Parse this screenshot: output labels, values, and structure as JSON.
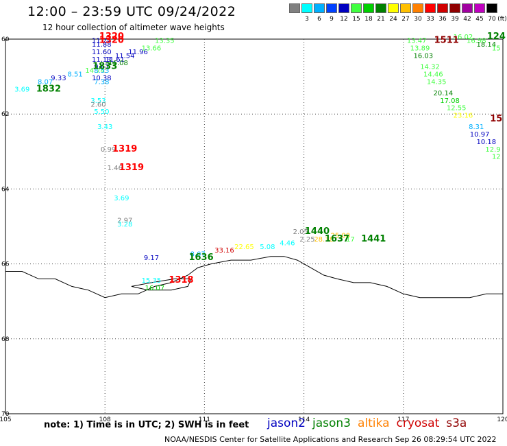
{
  "title": "12:00 – 23:59 UTC 09/24/2022",
  "subtitle": "12 hour collection of altimeter wave heights",
  "legend": {
    "unit": "(ft)",
    "bins": [
      {
        "label": "",
        "color": "#808080"
      },
      {
        "label": "3",
        "color": "#00ffff"
      },
      {
        "label": "6",
        "color": "#00b0ff"
      },
      {
        "label": "9",
        "color": "#0040ff"
      },
      {
        "label": "12",
        "color": "#0000c0"
      },
      {
        "label": "15",
        "color": "#40ff40"
      },
      {
        "label": "18",
        "color": "#00d000"
      },
      {
        "label": "21",
        "color": "#008000"
      },
      {
        "label": "24",
        "color": "#ffff00"
      },
      {
        "label": "27",
        "color": "#ffc000"
      },
      {
        "label": "30",
        "color": "#ff8000"
      },
      {
        "label": "33",
        "color": "#ff0000"
      },
      {
        "label": "36",
        "color": "#d00000"
      },
      {
        "label": "39",
        "color": "#900000"
      },
      {
        "label": "42",
        "color": "#a000a0"
      },
      {
        "label": "45",
        "color": "#c000c0"
      },
      {
        "label": "70",
        "color": "#000000"
      }
    ]
  },
  "axes": {
    "lon_min": 105,
    "lon_max": 120,
    "lat_min": 60,
    "lat_max": 70,
    "lon_ticks": [
      "105",
      "108",
      "111",
      "114",
      "117",
      "120"
    ],
    "lat_ticks": [
      "60",
      "62",
      "64",
      "66",
      "68",
      "70"
    ]
  },
  "observations": [
    {
      "text": "11.24",
      "lon": 107.9,
      "lat": 60.1,
      "color": "#0000c0"
    },
    {
      "text": "11.88",
      "lon": 107.9,
      "lat": 60.2,
      "color": "#0000c0"
    },
    {
      "text": "11.60",
      "lon": 107.9,
      "lat": 60.4,
      "color": "#0000c0"
    },
    {
      "text": "11.13",
      "lon": 107.9,
      "lat": 60.6,
      "color": "#0000c0"
    },
    {
      "text": "11.54",
      "lon": 108.6,
      "lat": 60.5,
      "color": "#0000c0"
    },
    {
      "text": "11.96",
      "lon": 109.0,
      "lat": 60.4,
      "color": "#0000c0"
    },
    {
      "text": "11.61",
      "lon": 108.3,
      "lat": 60.6,
      "color": "#0000c0"
    },
    {
      "text": "13.66",
      "lon": 109.4,
      "lat": 60.3,
      "color": "#40ff40"
    },
    {
      "text": "13.35",
      "lon": 109.8,
      "lat": 60.1,
      "color": "#40ff40"
    },
    {
      "text": "16.08",
      "lon": 108.4,
      "lat": 60.7,
      "color": "#008000"
    },
    {
      "text": "14.74",
      "lon": 107.7,
      "lat": 60.9,
      "color": "#40ff40"
    },
    {
      "text": "9.61",
      "lon": 107.9,
      "lat": 60.8,
      "color": "#0000c0"
    },
    {
      "text": "8.51",
      "lon": 107.1,
      "lat": 61.0,
      "color": "#00b0ff"
    },
    {
      "text": "8.53",
      "lon": 107.9,
      "lat": 60.9,
      "color": "#00b0ff"
    },
    {
      "text": "9.33",
      "lon": 106.6,
      "lat": 61.1,
      "color": "#0000c0"
    },
    {
      "text": "8.07",
      "lon": 106.2,
      "lat": 61.2,
      "color": "#00b0ff"
    },
    {
      "text": "3.69",
      "lon": 105.5,
      "lat": 61.4,
      "color": "#00ffff"
    },
    {
      "text": "10.38",
      "lon": 107.9,
      "lat": 61.1,
      "color": "#0000c0"
    },
    {
      "text": "7.38",
      "lon": 107.9,
      "lat": 61.2,
      "color": "#00b0ff"
    },
    {
      "text": "3.53",
      "lon": 107.8,
      "lat": 61.7,
      "color": "#00ffff"
    },
    {
      "text": "2.60",
      "lon": 107.8,
      "lat": 61.8,
      "color": "#808080"
    },
    {
      "text": "5.50",
      "lon": 107.9,
      "lat": 62.0,
      "color": "#00ffff"
    },
    {
      "text": "3.43",
      "lon": 108.0,
      "lat": 62.4,
      "color": "#00ffff"
    },
    {
      "text": "0.99",
      "lon": 108.1,
      "lat": 63.0,
      "color": "#808080"
    },
    {
      "text": "1.46",
      "lon": 108.3,
      "lat": 63.5,
      "color": "#808080"
    },
    {
      "text": "3.69",
      "lon": 108.5,
      "lat": 64.3,
      "color": "#00ffff"
    },
    {
      "text": "2.97",
      "lon": 108.6,
      "lat": 64.9,
      "color": "#808080"
    },
    {
      "text": "3.28",
      "lon": 108.6,
      "lat": 65.0,
      "color": "#00ffff"
    },
    {
      "text": "9.17",
      "lon": 109.4,
      "lat": 65.9,
      "color": "#0000c0"
    },
    {
      "text": "8.07",
      "lon": 110.8,
      "lat": 65.8,
      "color": "#00b0ff"
    },
    {
      "text": "33.16",
      "lon": 111.6,
      "lat": 65.7,
      "color": "#d00000"
    },
    {
      "text": "22.65",
      "lon": 112.2,
      "lat": 65.6,
      "color": "#ffff00"
    },
    {
      "text": "5.08",
      "lon": 112.9,
      "lat": 65.6,
      "color": "#00ffff"
    },
    {
      "text": "4.46",
      "lon": 113.5,
      "lat": 65.5,
      "color": "#00ffff"
    },
    {
      "text": "2.05",
      "lon": 113.9,
      "lat": 65.2,
      "color": "#808080"
    },
    {
      "text": "2.25",
      "lon": 114.1,
      "lat": 65.4,
      "color": "#808080"
    },
    {
      "text": "28.38",
      "lon": 114.6,
      "lat": 65.4,
      "color": "#ffc000"
    },
    {
      "text": "25.00",
      "lon": 115.1,
      "lat": 65.3,
      "color": "#ffc000"
    },
    {
      "text": "17",
      "lon": 115.4,
      "lat": 65.4,
      "color": "#40ff40"
    },
    {
      "text": "15.35",
      "lon": 109.4,
      "lat": 66.5,
      "color": "#00ffff"
    },
    {
      "text": "16.07",
      "lon": 109.5,
      "lat": 66.7,
      "color": "#00d000"
    },
    {
      "text": "13.47",
      "lon": 117.4,
      "lat": 60.1,
      "color": "#40ff40"
    },
    {
      "text": "13.89",
      "lon": 117.5,
      "lat": 60.3,
      "color": "#40ff40"
    },
    {
      "text": "16.03",
      "lon": 117.6,
      "lat": 60.5,
      "color": "#008000"
    },
    {
      "text": "14.32",
      "lon": 117.8,
      "lat": 60.8,
      "color": "#40ff40"
    },
    {
      "text": "14.46",
      "lon": 117.9,
      "lat": 61.0,
      "color": "#40ff40"
    },
    {
      "text": "14.35",
      "lon": 118.0,
      "lat": 61.2,
      "color": "#40ff40"
    },
    {
      "text": "20.14",
      "lon": 118.2,
      "lat": 61.5,
      "color": "#008000"
    },
    {
      "text": "17.08",
      "lon": 118.4,
      "lat": 61.7,
      "color": "#00d000"
    },
    {
      "text": "12.55",
      "lon": 118.6,
      "lat": 61.9,
      "color": "#40ff40"
    },
    {
      "text": "23.16",
      "lon": 118.8,
      "lat": 62.1,
      "color": "#ffff00"
    },
    {
      "text": "8.31",
      "lon": 119.2,
      "lat": 62.4,
      "color": "#00b0ff"
    },
    {
      "text": "10.97",
      "lon": 119.3,
      "lat": 62.6,
      "color": "#0000c0"
    },
    {
      "text": "10.18",
      "lon": 119.5,
      "lat": 62.8,
      "color": "#0000c0"
    },
    {
      "text": "12.9",
      "lon": 119.7,
      "lat": 63.0,
      "color": "#40ff40"
    },
    {
      "text": "12",
      "lon": 119.8,
      "lat": 63.2,
      "color": "#40ff40"
    },
    {
      "text": "16.02",
      "lon": 118.8,
      "lat": 60.0,
      "color": "#40ff40"
    },
    {
      "text": "16.98",
      "lon": 119.2,
      "lat": 60.1,
      "color": "#40ff40"
    },
    {
      "text": "18.14",
      "lon": 119.5,
      "lat": 60.2,
      "color": "#008000"
    },
    {
      "text": "15",
      "lon": 119.8,
      "lat": 60.3,
      "color": "#40ff40"
    }
  ],
  "time_labels": [
    {
      "text": "1320",
      "lon": 108.2,
      "lat": 60.0,
      "color": "#ff0000"
    },
    {
      "text": "1320",
      "lon": 108.2,
      "lat": 60.1,
      "color": "#ff0000"
    },
    {
      "text": "1833",
      "lon": 108.0,
      "lat": 60.8,
      "color": "#008000"
    },
    {
      "text": "1832",
      "lon": 106.3,
      "lat": 61.4,
      "color": "#008000"
    },
    {
      "text": "1319",
      "lon": 108.6,
      "lat": 63.0,
      "color": "#ff0000"
    },
    {
      "text": "1319",
      "lon": 108.8,
      "lat": 63.5,
      "color": "#ff0000"
    },
    {
      "text": "1636",
      "lon": 110.9,
      "lat": 65.9,
      "color": "#008000"
    },
    {
      "text": "1318",
      "lon": 110.3,
      "lat": 66.5,
      "color": "#ff0000"
    },
    {
      "text": "1440",
      "lon": 114.4,
      "lat": 65.2,
      "color": "#008000"
    },
    {
      "text": "1637",
      "lon": 115.0,
      "lat": 65.4,
      "color": "#008000"
    },
    {
      "text": "1441",
      "lon": 116.1,
      "lat": 65.4,
      "color": "#008000"
    },
    {
      "text": "1511",
      "lon": 118.3,
      "lat": 60.1,
      "color": "#900000"
    },
    {
      "text": "124",
      "lon": 119.8,
      "lat": 60.0,
      "color": "#008000"
    },
    {
      "text": "15",
      "lon": 119.8,
      "lat": 62.2,
      "color": "#900000"
    }
  ],
  "coastline": [
    [
      105.0,
      66.2
    ],
    [
      105.5,
      66.2
    ],
    [
      106.0,
      66.4
    ],
    [
      106.5,
      66.4
    ],
    [
      107.0,
      66.6
    ],
    [
      107.5,
      66.7
    ],
    [
      108.0,
      66.9
    ],
    [
      108.5,
      66.8
    ],
    [
      109.0,
      66.8
    ],
    [
      109.5,
      66.6
    ],
    [
      110.0,
      66.5
    ],
    [
      110.5,
      66.3
    ],
    [
      110.8,
      66.1
    ],
    [
      111.2,
      66.0
    ],
    [
      111.8,
      65.9
    ],
    [
      112.4,
      65.9
    ],
    [
      113.0,
      65.8
    ],
    [
      113.4,
      65.8
    ],
    [
      113.8,
      65.9
    ],
    [
      114.2,
      66.1
    ],
    [
      114.6,
      66.3
    ],
    [
      115.0,
      66.4
    ],
    [
      115.5,
      66.5
    ],
    [
      116.0,
      66.5
    ],
    [
      116.5,
      66.6
    ],
    [
      117.0,
      66.8
    ],
    [
      117.5,
      66.9
    ],
    [
      118.0,
      66.9
    ],
    [
      118.5,
      66.9
    ],
    [
      119.0,
      66.9
    ],
    [
      119.5,
      66.8
    ],
    [
      120.0,
      66.8
    ]
  ],
  "island": [
    [
      108.8,
      66.6
    ],
    [
      109.4,
      66.5
    ],
    [
      110.1,
      66.4
    ],
    [
      110.6,
      66.4
    ],
    [
      110.5,
      66.6
    ],
    [
      110.0,
      66.7
    ],
    [
      109.3,
      66.7
    ],
    [
      108.8,
      66.6
    ]
  ],
  "note": "note: 1) Time is in UTC; 2) SWH is in feet",
  "satellites": [
    {
      "name": "jason2",
      "color": "#0000c0"
    },
    {
      "name": "jason3",
      "color": "#008000"
    },
    {
      "name": "altika",
      "color": "#ff8000"
    },
    {
      "name": "cryosat",
      "color": "#d00000"
    },
    {
      "name": "s3a",
      "color": "#900000"
    }
  ],
  "credit": "NOAA/NESDIS Center for Satellite Applications and Research   Sep 26 08:29:54 UTC 2022"
}
